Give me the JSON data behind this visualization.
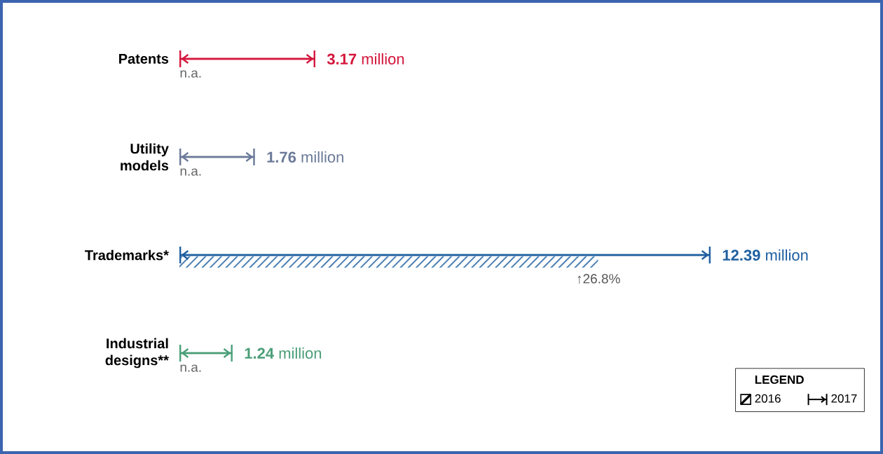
{
  "chart_data": {
    "type": "bar",
    "orientation": "horizontal",
    "categories": [
      "Patents",
      "Utility models",
      "Trademarks*",
      "Industrial designs**"
    ],
    "series": [
      {
        "name": "2016",
        "color": "#1f5fa0",
        "values": [
          null,
          null,
          9.77,
          null
        ],
        "value_labels": [
          "n.a.",
          "n.a.",
          null,
          "n.a."
        ]
      },
      {
        "name": "2017",
        "colors": [
          "#d4163c",
          "#6b7a99",
          "#1f5fa0",
          "#4a9e78"
        ],
        "values": [
          3.17,
          1.76,
          12.39,
          1.24
        ],
        "value_labels": [
          "**3.17** million",
          "**1.76** million",
          "**12.39** million",
          "**1.24** million"
        ]
      }
    ],
    "annotations": [
      {
        "text": "↑26.8%",
        "x": 9.77,
        "y": "Trademarks*"
      }
    ],
    "legend": "bottom right",
    "legend_title": "LEGEND"
  }
}
